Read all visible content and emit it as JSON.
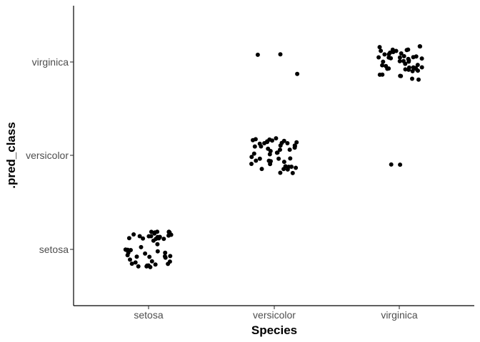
{
  "chart_data": {
    "type": "scatter",
    "title": "",
    "xlabel": "Species",
    "ylabel": ".pred_class",
    "x_categories": [
      "setosa",
      "versicolor",
      "virginica"
    ],
    "y_categories": [
      "setosa",
      "versicolor",
      "virginica"
    ],
    "jitter": true,
    "grid": false,
    "series": [
      {
        "values": [
          {
            "x": "setosa",
            "y": "setosa",
            "count": 50
          },
          {
            "x": "versicolor",
            "y": "versicolor",
            "count": 47
          },
          {
            "x": "versicolor",
            "y": "virginica",
            "count": 3
          },
          {
            "x": "virginica",
            "y": "virginica",
            "count": 48
          },
          {
            "x": "virginica",
            "y": "versicolor",
            "count": 2
          }
        ]
      }
    ]
  }
}
